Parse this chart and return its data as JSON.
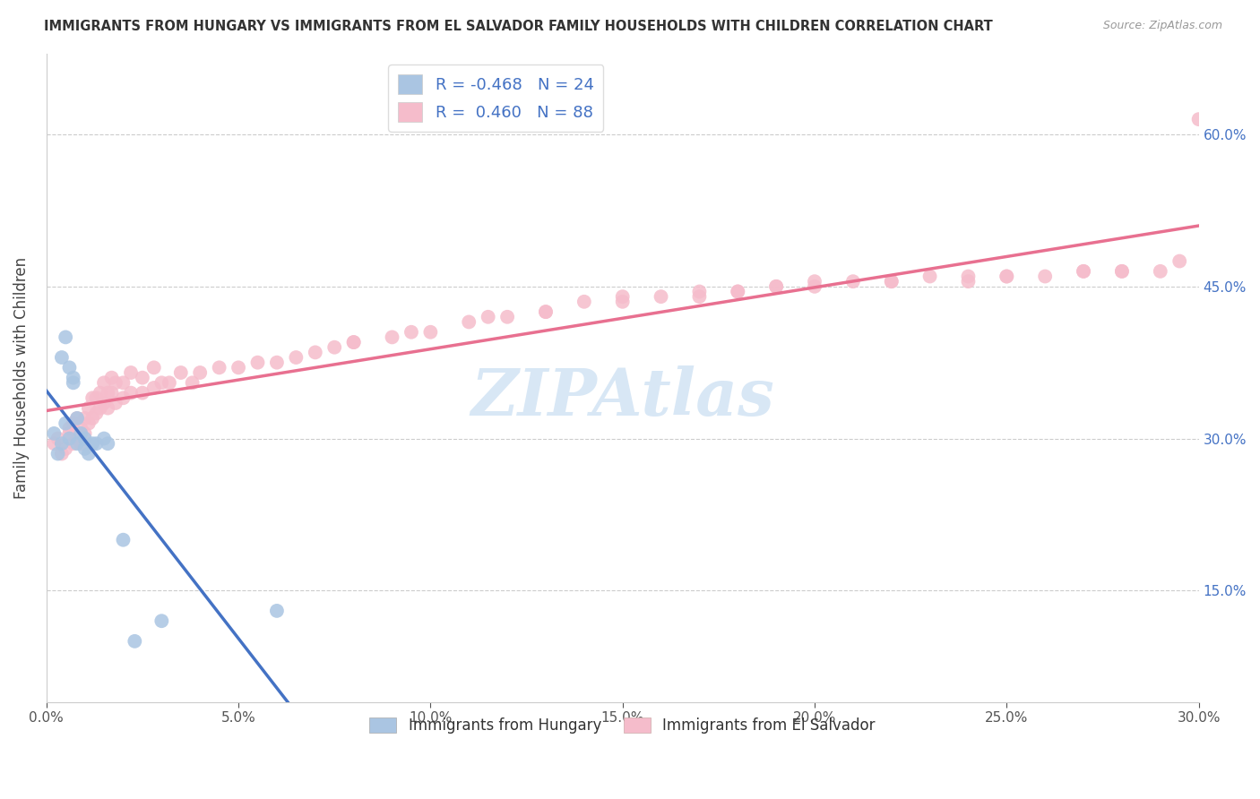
{
  "title": "IMMIGRANTS FROM HUNGARY VS IMMIGRANTS FROM EL SALVADOR FAMILY HOUSEHOLDS WITH CHILDREN CORRELATION CHART",
  "source": "Source: ZipAtlas.com",
  "ylabel": "Family Households with Children",
  "y_ticks": [
    0.15,
    0.3,
    0.45,
    0.6
  ],
  "y_tick_labels": [
    "15.0%",
    "30.0%",
    "45.0%",
    "60.0%"
  ],
  "x_min": 0.0,
  "x_max": 0.3,
  "y_min": 0.04,
  "y_max": 0.68,
  "legend_hungary_r": "-0.468",
  "legend_hungary_n": "24",
  "legend_salvador_r": "0.460",
  "legend_salvador_n": "88",
  "hungary_color": "#aac5e2",
  "salvador_color": "#f5bccb",
  "hungary_line_color": "#4472c4",
  "salvador_line_color": "#e87090",
  "watermark": "ZIPAtlas",
  "hungary_scatter_x": [
    0.002,
    0.003,
    0.004,
    0.004,
    0.005,
    0.005,
    0.006,
    0.006,
    0.007,
    0.007,
    0.008,
    0.008,
    0.009,
    0.01,
    0.01,
    0.011,
    0.012,
    0.013,
    0.015,
    0.016,
    0.02,
    0.023,
    0.03,
    0.06
  ],
  "hungary_scatter_y": [
    0.305,
    0.285,
    0.295,
    0.38,
    0.315,
    0.4,
    0.3,
    0.37,
    0.36,
    0.355,
    0.295,
    0.32,
    0.305,
    0.29,
    0.3,
    0.285,
    0.295,
    0.295,
    0.3,
    0.295,
    0.2,
    0.1,
    0.12,
    0.13
  ],
  "salvador_scatter_x": [
    0.002,
    0.003,
    0.004,
    0.005,
    0.006,
    0.006,
    0.007,
    0.007,
    0.008,
    0.008,
    0.009,
    0.009,
    0.01,
    0.01,
    0.011,
    0.011,
    0.012,
    0.012,
    0.013,
    0.013,
    0.014,
    0.014,
    0.015,
    0.015,
    0.016,
    0.016,
    0.017,
    0.017,
    0.018,
    0.018,
    0.02,
    0.02,
    0.022,
    0.022,
    0.025,
    0.025,
    0.028,
    0.028,
    0.03,
    0.032,
    0.035,
    0.038,
    0.04,
    0.045,
    0.05,
    0.055,
    0.06,
    0.065,
    0.07,
    0.075,
    0.08,
    0.09,
    0.1,
    0.11,
    0.12,
    0.13,
    0.14,
    0.15,
    0.16,
    0.17,
    0.18,
    0.19,
    0.2,
    0.21,
    0.22,
    0.23,
    0.24,
    0.25,
    0.26,
    0.27,
    0.28,
    0.29,
    0.295,
    0.3,
    0.15,
    0.2,
    0.18,
    0.24,
    0.28,
    0.22,
    0.13,
    0.17,
    0.25,
    0.27,
    0.19,
    0.08,
    0.095,
    0.115
  ],
  "salvador_scatter_y": [
    0.295,
    0.3,
    0.285,
    0.29,
    0.305,
    0.31,
    0.295,
    0.315,
    0.3,
    0.32,
    0.295,
    0.31,
    0.305,
    0.32,
    0.315,
    0.33,
    0.32,
    0.34,
    0.325,
    0.34,
    0.33,
    0.345,
    0.335,
    0.355,
    0.33,
    0.345,
    0.345,
    0.36,
    0.335,
    0.355,
    0.34,
    0.355,
    0.345,
    0.365,
    0.345,
    0.36,
    0.35,
    0.37,
    0.355,
    0.355,
    0.365,
    0.355,
    0.365,
    0.37,
    0.37,
    0.375,
    0.375,
    0.38,
    0.385,
    0.39,
    0.395,
    0.4,
    0.405,
    0.415,
    0.42,
    0.425,
    0.435,
    0.435,
    0.44,
    0.44,
    0.445,
    0.45,
    0.45,
    0.455,
    0.455,
    0.46,
    0.46,
    0.46,
    0.46,
    0.465,
    0.465,
    0.465,
    0.475,
    0.615,
    0.44,
    0.455,
    0.445,
    0.455,
    0.465,
    0.455,
    0.425,
    0.445,
    0.46,
    0.465,
    0.45,
    0.395,
    0.405,
    0.42
  ]
}
